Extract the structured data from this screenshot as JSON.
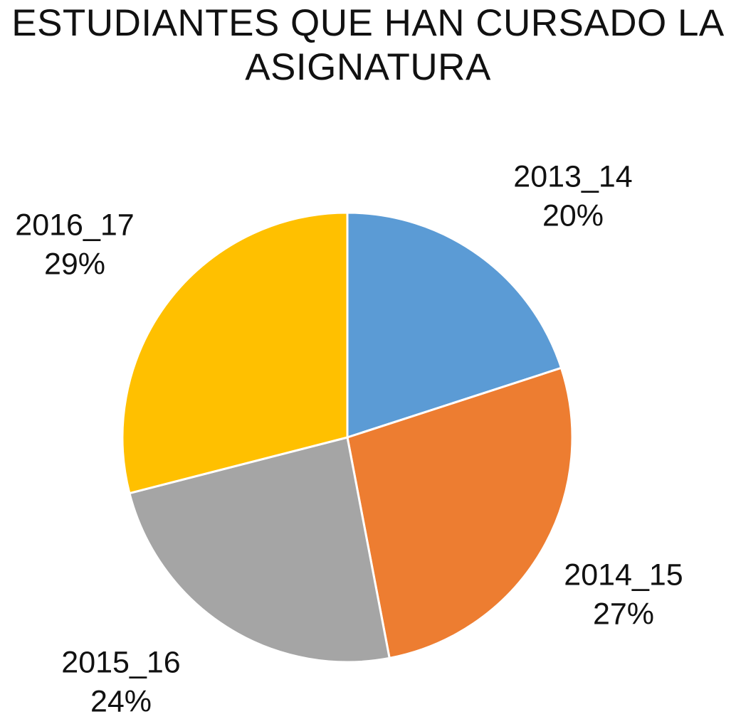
{
  "chart_data": {
    "type": "pie",
    "title_lines": [
      "ESTUDIANTES QUE HAN CURSADO LA",
      "ASIGNATURA"
    ],
    "legend": "none",
    "slices": [
      {
        "label": "2013_14",
        "value": 20,
        "value_label": "20%",
        "color": "#5B9BD5"
      },
      {
        "label": "2014_15",
        "value": 27,
        "value_label": "27%",
        "color": "#ED7D31"
      },
      {
        "label": "2015_16",
        "value": 24,
        "value_label": "24%",
        "color": "#A5A5A5"
      },
      {
        "label": "2016_17",
        "value": 29,
        "value_label": "29%",
        "color": "#FFC000"
      }
    ]
  }
}
